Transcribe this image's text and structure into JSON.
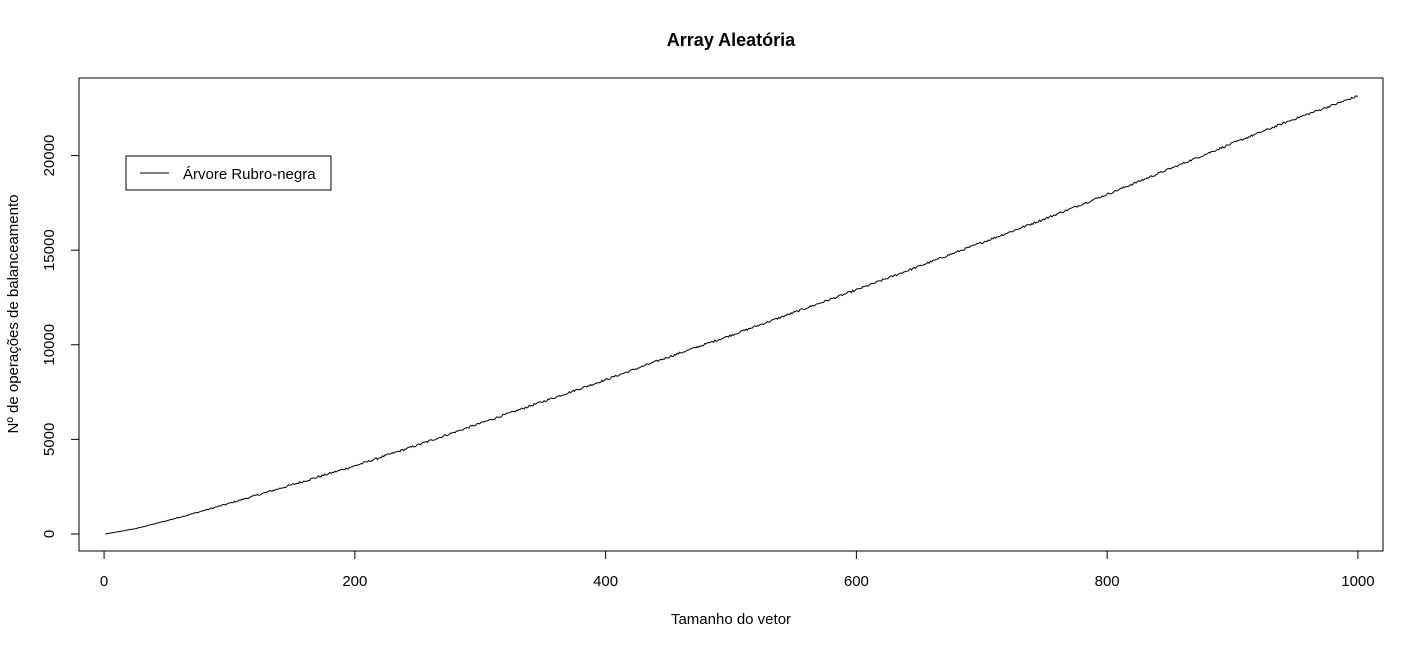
{
  "chart_data": {
    "type": "line",
    "title": "Array Aleatória",
    "xlabel": "Tamanho do vetor",
    "ylabel": "Nº de operações de balanceamento",
    "xlim": [
      -20,
      1020
    ],
    "ylim": [
      -900,
      24100
    ],
    "x_ticks": [
      0,
      200,
      400,
      600,
      800,
      1000
    ],
    "x_tick_labels": [
      "0",
      "200",
      "400",
      "600",
      "800",
      "1000"
    ],
    "y_ticks": [
      0,
      5000,
      10000,
      15000,
      20000
    ],
    "y_tick_labels": [
      "0",
      "5000",
      "10000",
      "15000",
      "20000"
    ],
    "grid": false,
    "legend_position": "top-left",
    "series": [
      {
        "name": "Árvore Rubro-negra",
        "color": "#000000",
        "x": [
          1,
          25,
          50,
          75,
          100,
          150,
          200,
          250,
          300,
          350,
          400,
          450,
          500,
          550,
          600,
          650,
          700,
          750,
          800,
          850,
          900,
          950,
          1000
        ],
        "values": [
          0,
          280,
          700,
          1150,
          1620,
          2600,
          3600,
          4700,
          5850,
          7000,
          8150,
          9350,
          10500,
          11700,
          12900,
          14150,
          15400,
          16650,
          17950,
          19300,
          20650,
          21950,
          23150
        ]
      }
    ]
  }
}
